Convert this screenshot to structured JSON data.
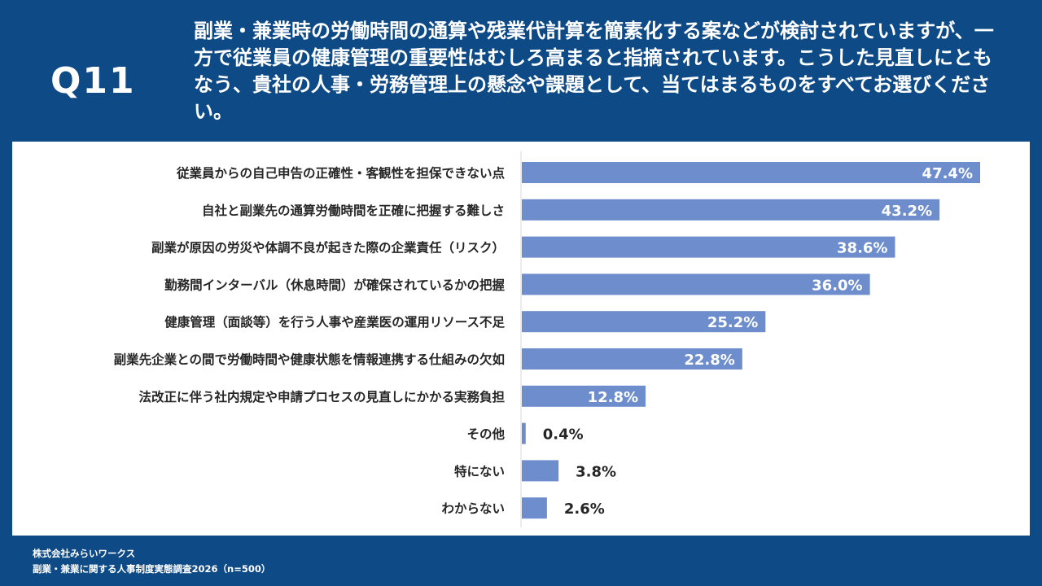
{
  "header": {
    "question_id": "Q11",
    "question_text": "副業・兼業時の労働時間の通算や残業代計算を簡素化する案などが検討されていますが、一方で従業員の健康管理の重要性はむしろ高まると指摘されています。こうした見直しにともなう、貴社の人事・労務管理上の懸念や課題として、当てはまるものをすべてお選びください。"
  },
  "footer": {
    "company": "株式会社みらいワークス",
    "survey": "副業・兼業に関する人事制度実態調査2026（n=500）"
  },
  "colors": {
    "background": "#0e4a86",
    "bar": "#6d8dcc",
    "label_text": "#262626",
    "value_inside": "#ffffff",
    "value_outside": "#262626"
  },
  "chart_data": {
    "type": "bar",
    "orientation": "horizontal",
    "categories": [
      "従業員からの自己申告の正確性・客観性を担保できない点",
      "自社と副業先の通算労働時間を正確に把握する難しさ",
      "副業が原因の労災や体調不良が起きた際の企業責任（リスク）",
      "勤務間インターバル（休息時間）が確保されているかの把握",
      "健康管理（面談等）を行う人事や産業医の運用リソース不足",
      "副業先企業との間で労働時間や健康状態を情報連携する仕組みの欠如",
      "法改正に伴う社内規定や申請プロセスの見直しにかかる実務負担",
      "その他",
      "特にない",
      "わからない"
    ],
    "values": [
      47.4,
      43.2,
      38.6,
      36.0,
      25.2,
      22.8,
      12.8,
      0.4,
      3.8,
      2.6
    ],
    "value_labels": [
      "47.4%",
      "43.2%",
      "38.6%",
      "36.0%",
      "25.2%",
      "22.8%",
      "12.8%",
      "0.4%",
      "3.8%",
      "2.6%"
    ],
    "unit": "%",
    "xlim": [
      0,
      50
    ],
    "grid": false
  }
}
